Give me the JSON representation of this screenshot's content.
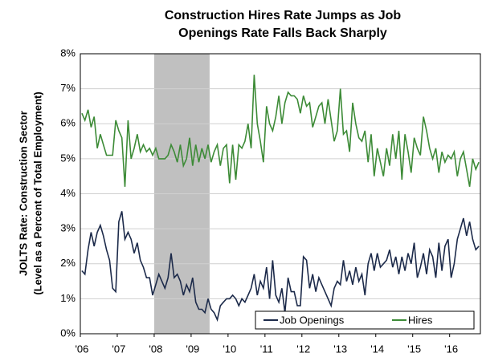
{
  "chart_data": {
    "type": "line",
    "title": [
      "Construction Hires Rate Jumps as Job",
      "Openings Rate Falls Back Sharply"
    ],
    "y_label": [
      "JOLTS Rate: Construction Sector",
      "(Level as a Percent of Total Employment)"
    ],
    "categories": [
      "'06",
      null,
      null,
      null,
      null,
      null,
      null,
      null,
      null,
      null,
      null,
      null,
      "'07",
      null,
      null,
      null,
      null,
      null,
      null,
      null,
      null,
      null,
      null,
      null,
      "'08",
      null,
      null,
      null,
      null,
      null,
      null,
      null,
      null,
      null,
      null,
      null,
      "'09",
      null,
      null,
      null,
      null,
      null,
      null,
      null,
      null,
      null,
      null,
      null,
      "'10",
      null,
      null,
      null,
      null,
      null,
      null,
      null,
      null,
      null,
      null,
      null,
      "'11",
      null,
      null,
      null,
      null,
      null,
      null,
      null,
      null,
      null,
      null,
      null,
      "'12",
      null,
      null,
      null,
      null,
      null,
      null,
      null,
      null,
      null,
      null,
      null,
      "'13",
      null,
      null,
      null,
      null,
      null,
      null,
      null,
      null,
      null,
      null,
      null,
      "'14",
      null,
      null,
      null,
      null,
      null,
      null,
      null,
      null,
      null,
      null,
      null,
      "'15",
      null,
      null,
      null,
      null,
      null,
      null,
      null,
      null,
      null,
      null,
      null,
      "'16",
      null,
      null,
      null,
      null,
      null,
      null,
      null,
      null,
      null
    ],
    "series": [
      {
        "name": "Job Openings",
        "color": "#1c2a4a",
        "values": [
          1.8,
          1.7,
          2.4,
          2.9,
          2.5,
          2.9,
          3.1,
          2.8,
          2.4,
          2.1,
          1.3,
          1.2,
          3.2,
          3.5,
          2.7,
          2.9,
          2.7,
          2.3,
          2.6,
          2.1,
          1.9,
          1.6,
          1.6,
          1.1,
          1.4,
          1.7,
          1.5,
          1.3,
          1.6,
          2.3,
          1.6,
          1.7,
          1.5,
          1.1,
          1.4,
          1.2,
          1.6,
          0.9,
          0.7,
          0.7,
          0.6,
          1.0,
          0.7,
          0.6,
          0.4,
          0.8,
          0.9,
          1.0,
          1.0,
          1.1,
          1.0,
          0.8,
          1.0,
          0.9,
          1.1,
          1.3,
          1.7,
          1.1,
          1.5,
          1.3,
          1.9,
          1.0,
          2.1,
          1.1,
          0.9,
          1.3,
          0.6,
          1.6,
          1.2,
          1.2,
          0.8,
          0.8,
          2.2,
          2.1,
          1.3,
          1.7,
          1.2,
          1.6,
          1.4,
          1.2,
          1.0,
          0.8,
          1.3,
          1.5,
          1.4,
          2.1,
          1.5,
          1.8,
          1.4,
          1.9,
          1.5,
          1.7,
          1.1,
          2.0,
          2.3,
          1.8,
          2.3,
          1.9,
          2.0,
          2.1,
          2.4,
          1.9,
          2.2,
          1.7,
          2.2,
          1.8,
          2.3,
          2.0,
          2.6,
          1.6,
          1.9,
          2.3,
          1.7,
          2.4,
          2.2,
          1.6,
          2.6,
          1.8,
          2.5,
          2.7,
          1.6,
          2.0,
          2.7,
          3.0,
          3.3,
          2.8,
          3.2,
          2.7,
          2.4,
          2.5
        ]
      },
      {
        "name": "Hires",
        "color": "#3d8b37",
        "values": [
          6.3,
          6.1,
          6.4,
          5.9,
          6.2,
          5.3,
          5.7,
          5.4,
          5.1,
          5.1,
          5.1,
          6.1,
          5.8,
          5.6,
          4.2,
          6.1,
          5.0,
          5.3,
          5.7,
          5.2,
          5.4,
          5.2,
          5.3,
          5.1,
          5.3,
          5.0,
          5.0,
          5.0,
          5.1,
          5.4,
          5.2,
          4.9,
          5.4,
          4.8,
          5.0,
          5.6,
          4.8,
          5.4,
          4.9,
          5.3,
          5.0,
          5.4,
          4.9,
          5.2,
          5.4,
          4.8,
          5.3,
          5.4,
          4.3,
          5.4,
          4.4,
          5.4,
          5.3,
          5.5,
          6.0,
          5.3,
          7.4,
          6.0,
          5.5,
          4.9,
          6.5,
          6.0,
          5.8,
          6.2,
          6.8,
          6.0,
          6.6,
          6.9,
          6.8,
          6.8,
          6.7,
          6.3,
          6.8,
          6.5,
          6.6,
          5.9,
          6.2,
          6.5,
          6.6,
          6.0,
          6.7,
          6.1,
          5.5,
          5.8,
          7.0,
          5.7,
          5.8,
          5.2,
          6.6,
          6.0,
          5.6,
          5.5,
          5.8,
          4.9,
          5.7,
          4.5,
          5.3,
          4.9,
          4.5,
          5.3,
          4.8,
          5.7,
          5.0,
          5.8,
          4.4,
          5.7,
          5.2,
          4.6,
          5.6,
          5.3,
          5.1,
          6.2,
          5.8,
          5.3,
          5.0,
          5.3,
          4.6,
          5.2,
          4.9,
          5.1,
          5.0,
          5.2,
          4.5,
          5.0,
          5.2,
          4.7,
          4.2,
          5.0,
          4.7,
          4.9
        ]
      }
    ],
    "shaded_range": [
      24,
      41
    ],
    "shade_color": "#c0c0c0",
    "ylim": [
      0,
      8
    ],
    "yticks": [
      {
        "value": 0,
        "label": "0%"
      },
      {
        "value": 1,
        "label": "1%"
      },
      {
        "value": 2,
        "label": "2%"
      },
      {
        "value": 3,
        "label": "3%"
      },
      {
        "value": 4,
        "label": "4%"
      },
      {
        "value": 5,
        "label": "5%"
      },
      {
        "value": 6,
        "label": "6%"
      },
      {
        "value": 7,
        "label": "7%"
      },
      {
        "value": 8,
        "label": "8%"
      }
    ],
    "grid": true,
    "legend": "bottom-right"
  }
}
